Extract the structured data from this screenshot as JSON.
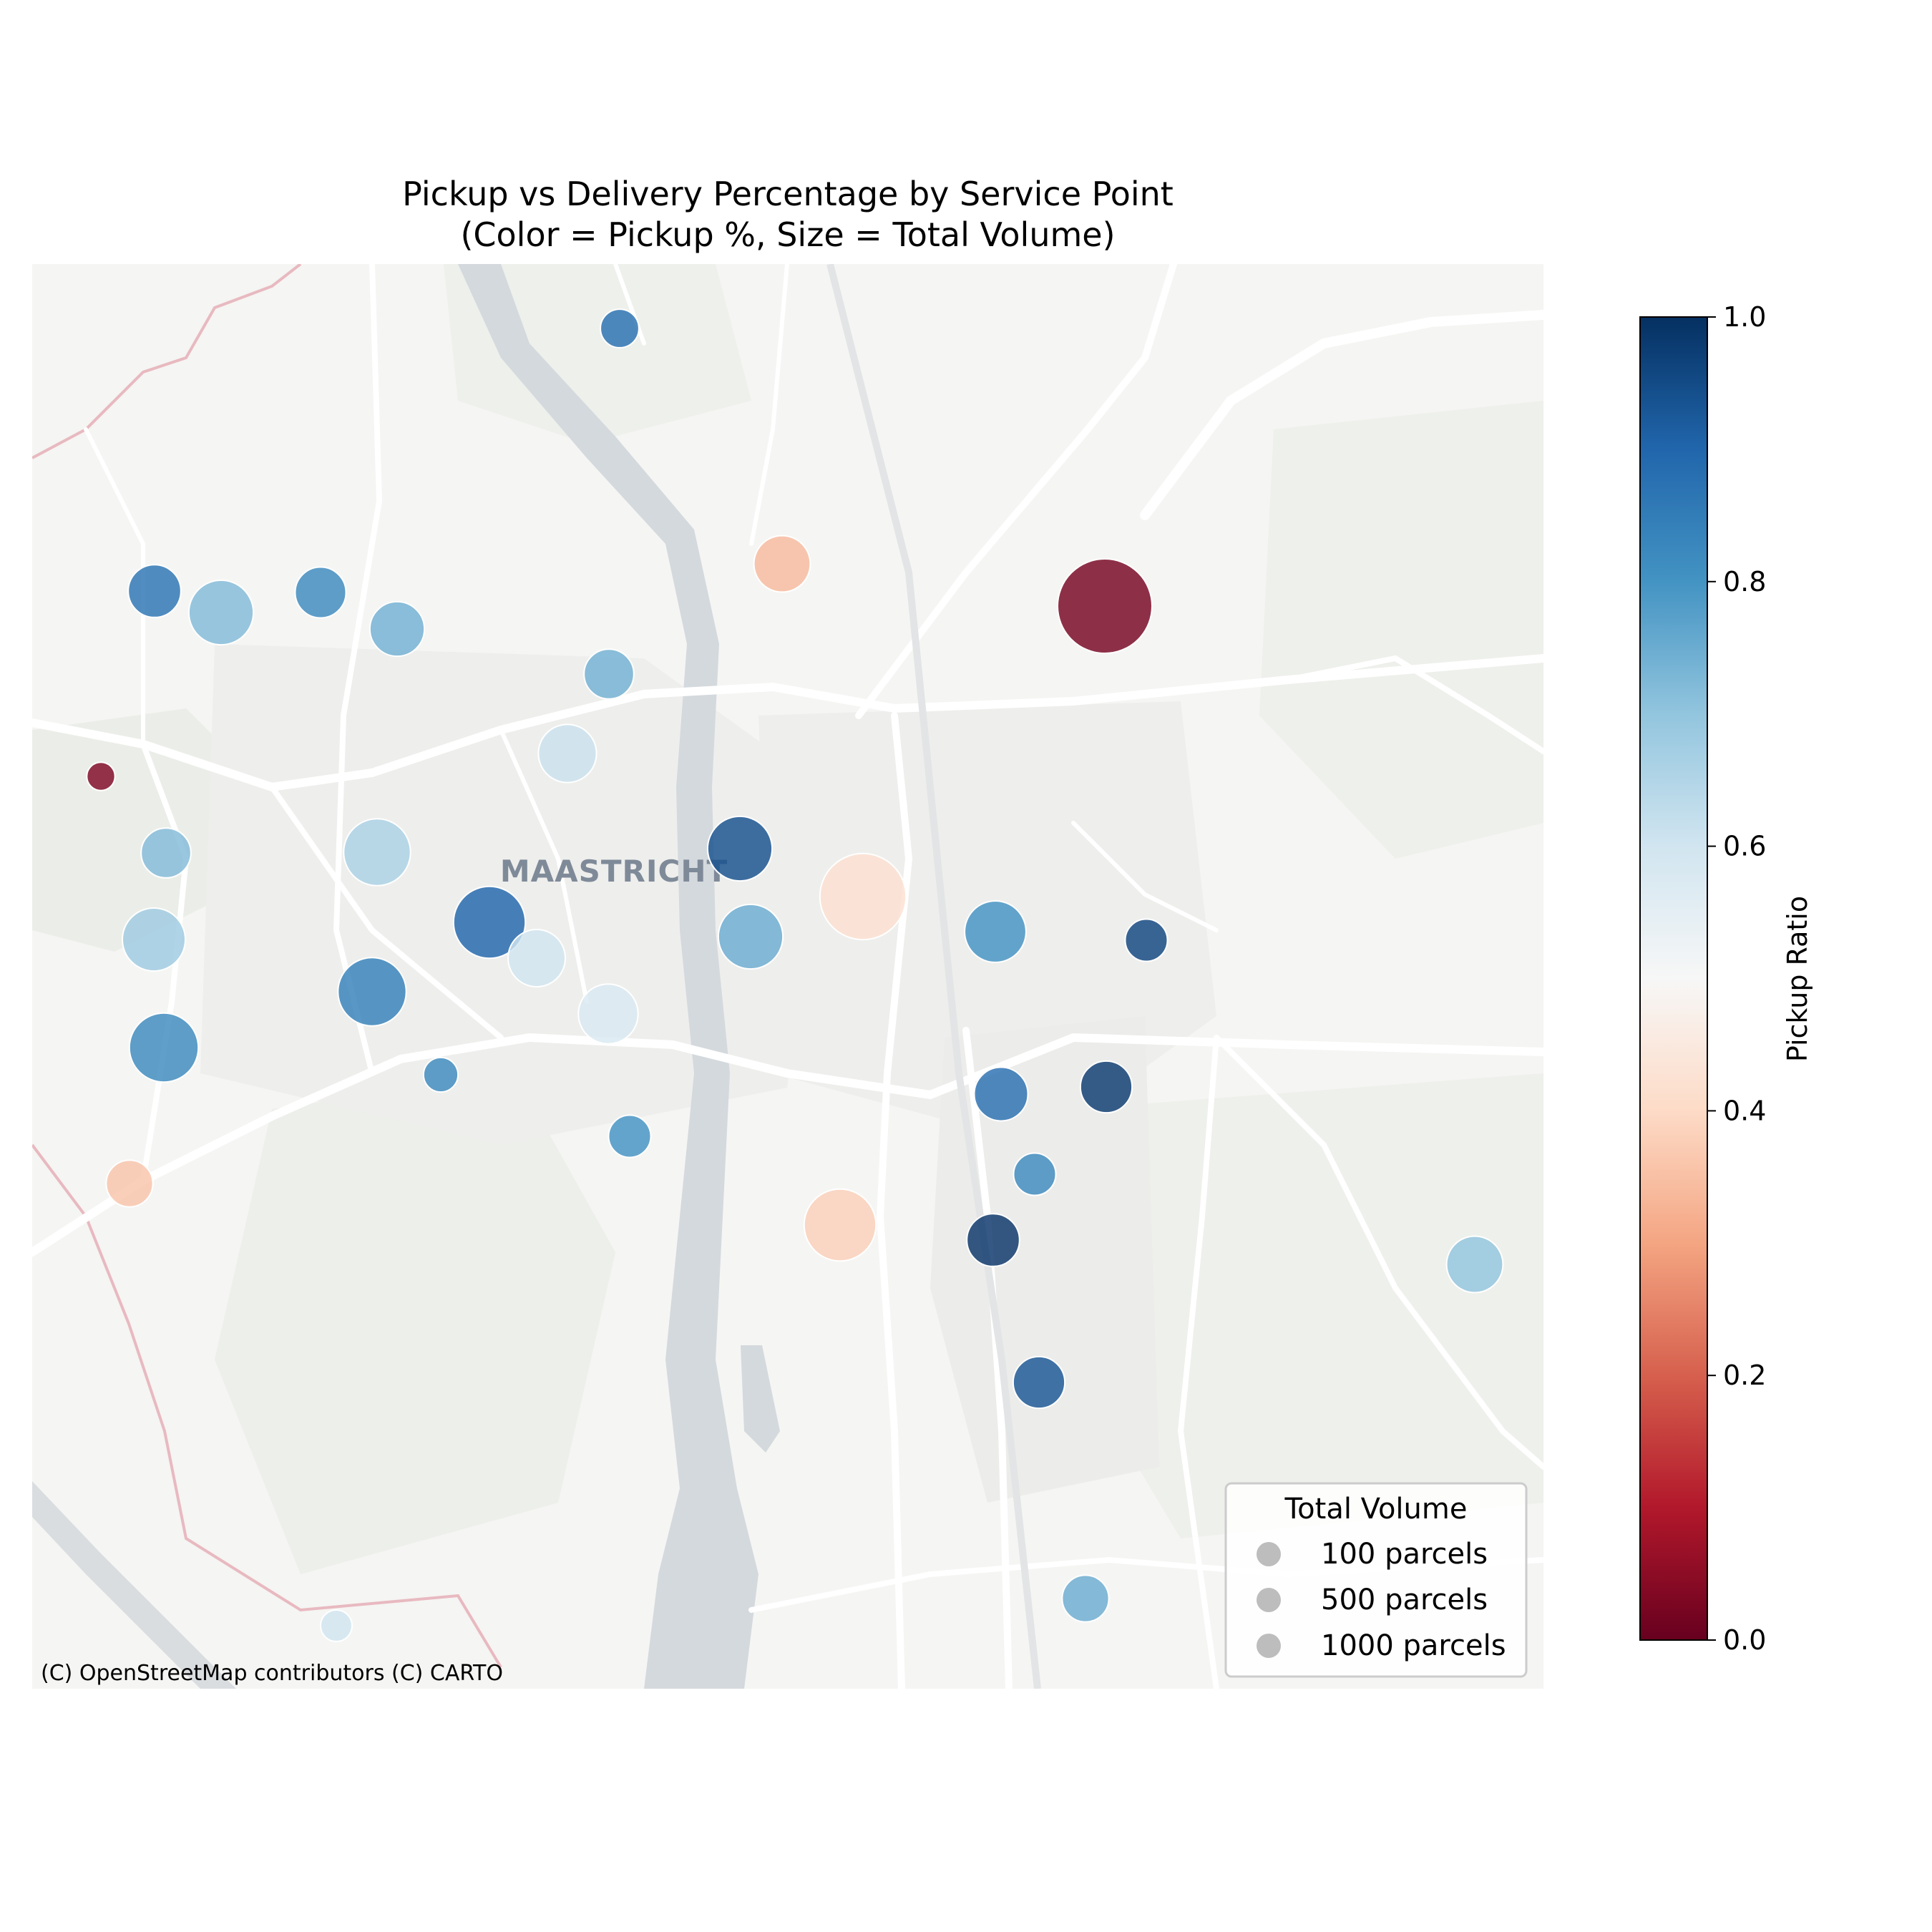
{
  "title": {
    "line1": "Pickup vs Delivery Percentage by Service Point",
    "line2": "(Color = Pickup %, Size = Total Volume)"
  },
  "map": {
    "city_label": "MAASTRICHT",
    "attribution": "(C) OpenStreetMap contributors (C) CARTO"
  },
  "colorbar": {
    "label": "Pickup Ratio",
    "ticks": [
      "0.0",
      "0.2",
      "0.4",
      "0.6",
      "0.8",
      "1.0"
    ],
    "colormap": "RdBu",
    "range": [
      0,
      1
    ]
  },
  "legend": {
    "title": "Total Volume",
    "entries": [
      "100 parcels",
      "500 parcels",
      "1000 parcels"
    ]
  },
  "colors": {
    "map_background": "#f5f5f3",
    "river": "#d4d9dd",
    "roads": "#ffffff",
    "park": "#ebeee8"
  },
  "chart_data": {
    "type": "scatter",
    "title": "Pickup vs Delivery Percentage by Service Point\n(Color = Pickup %, Size = Total Volume)",
    "color_variable": "Pickup Ratio",
    "size_variable": "Total Volume",
    "points": [
      {
        "pickup": 0.88,
        "volume": 150
      },
      {
        "pickup": 0.34,
        "volume": 320
      },
      {
        "pickup": 0.87,
        "volume": 280
      },
      {
        "pickup": 0.72,
        "volume": 420
      },
      {
        "pickup": 0.82,
        "volume": 260
      },
      {
        "pickup": 0.74,
        "volume": 300
      },
      {
        "pickup": 0.02,
        "volume": 900
      },
      {
        "pickup": 0.74,
        "volume": 250
      },
      {
        "pickup": 0.61,
        "volume": 340
      },
      {
        "pickup": 0.03,
        "volume": 80
      },
      {
        "pickup": 0.72,
        "volume": 250
      },
      {
        "pickup": 0.66,
        "volume": 450
      },
      {
        "pickup": 0.94,
        "volume": 420
      },
      {
        "pickup": 0.42,
        "volume": 750
      },
      {
        "pickup": 0.68,
        "volume": 400
      },
      {
        "pickup": 0.9,
        "volume": 520
      },
      {
        "pickup": 0.6,
        "volume": 330
      },
      {
        "pickup": 0.75,
        "volume": 420
      },
      {
        "pickup": 0.8,
        "volume": 380
      },
      {
        "pickup": 0.96,
        "volume": 180
      },
      {
        "pickup": 0.84,
        "volume": 470
      },
      {
        "pickup": 0.58,
        "volume": 360
      },
      {
        "pickup": 0.82,
        "volume": 480
      },
      {
        "pickup": 0.82,
        "volume": 120
      },
      {
        "pickup": 0.88,
        "volume": 290
      },
      {
        "pickup": 0.98,
        "volume": 270
      },
      {
        "pickup": 0.8,
        "volume": 180
      },
      {
        "pickup": 0.36,
        "volume": 220
      },
      {
        "pickup": 0.82,
        "volume": 180
      },
      {
        "pickup": 0.38,
        "volume": 520
      },
      {
        "pickup": 0.99,
        "volume": 280
      },
      {
        "pickup": 0.7,
        "volume": 320
      },
      {
        "pickup": 0.93,
        "volume": 270
      },
      {
        "pickup": 0.75,
        "volume": 220
      },
      {
        "pickup": 0.6,
        "volume": 100
      }
    ]
  }
}
